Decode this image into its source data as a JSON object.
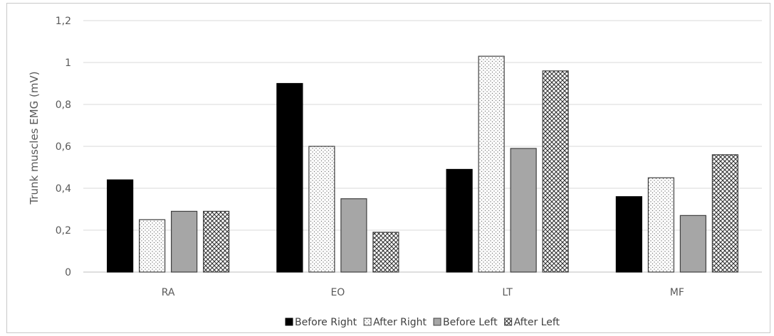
{
  "chart_data": {
    "type": "bar",
    "title": "",
    "ylabel": "Trunk  muscles EMG (mV)",
    "xlabel": "",
    "categories": [
      "RA",
      "EO",
      "LT",
      "MF"
    ],
    "ylim": [
      0,
      1.2
    ],
    "yticks": [
      "0",
      "0,2",
      "0,4",
      "0,6",
      "0,8",
      "1",
      "1,2"
    ],
    "grid": true,
    "legend_position": "bottom",
    "series": [
      {
        "name": "Before Right",
        "values": [
          0.44,
          0.9,
          0.49,
          0.36
        ],
        "fill": "#000000",
        "pattern": "solid"
      },
      {
        "name": "After Right",
        "values": [
          0.25,
          0.6,
          1.03,
          0.45
        ],
        "fill": "#ffffff",
        "pattern": "dots"
      },
      {
        "name": "Before Left",
        "values": [
          0.29,
          0.35,
          0.59,
          0.27
        ],
        "fill": "#a6a6a6",
        "pattern": "solid"
      },
      {
        "name": "After Left",
        "values": [
          0.29,
          0.19,
          0.96,
          0.56
        ],
        "fill": "#ffffff",
        "pattern": "diagonal-cross"
      }
    ]
  }
}
